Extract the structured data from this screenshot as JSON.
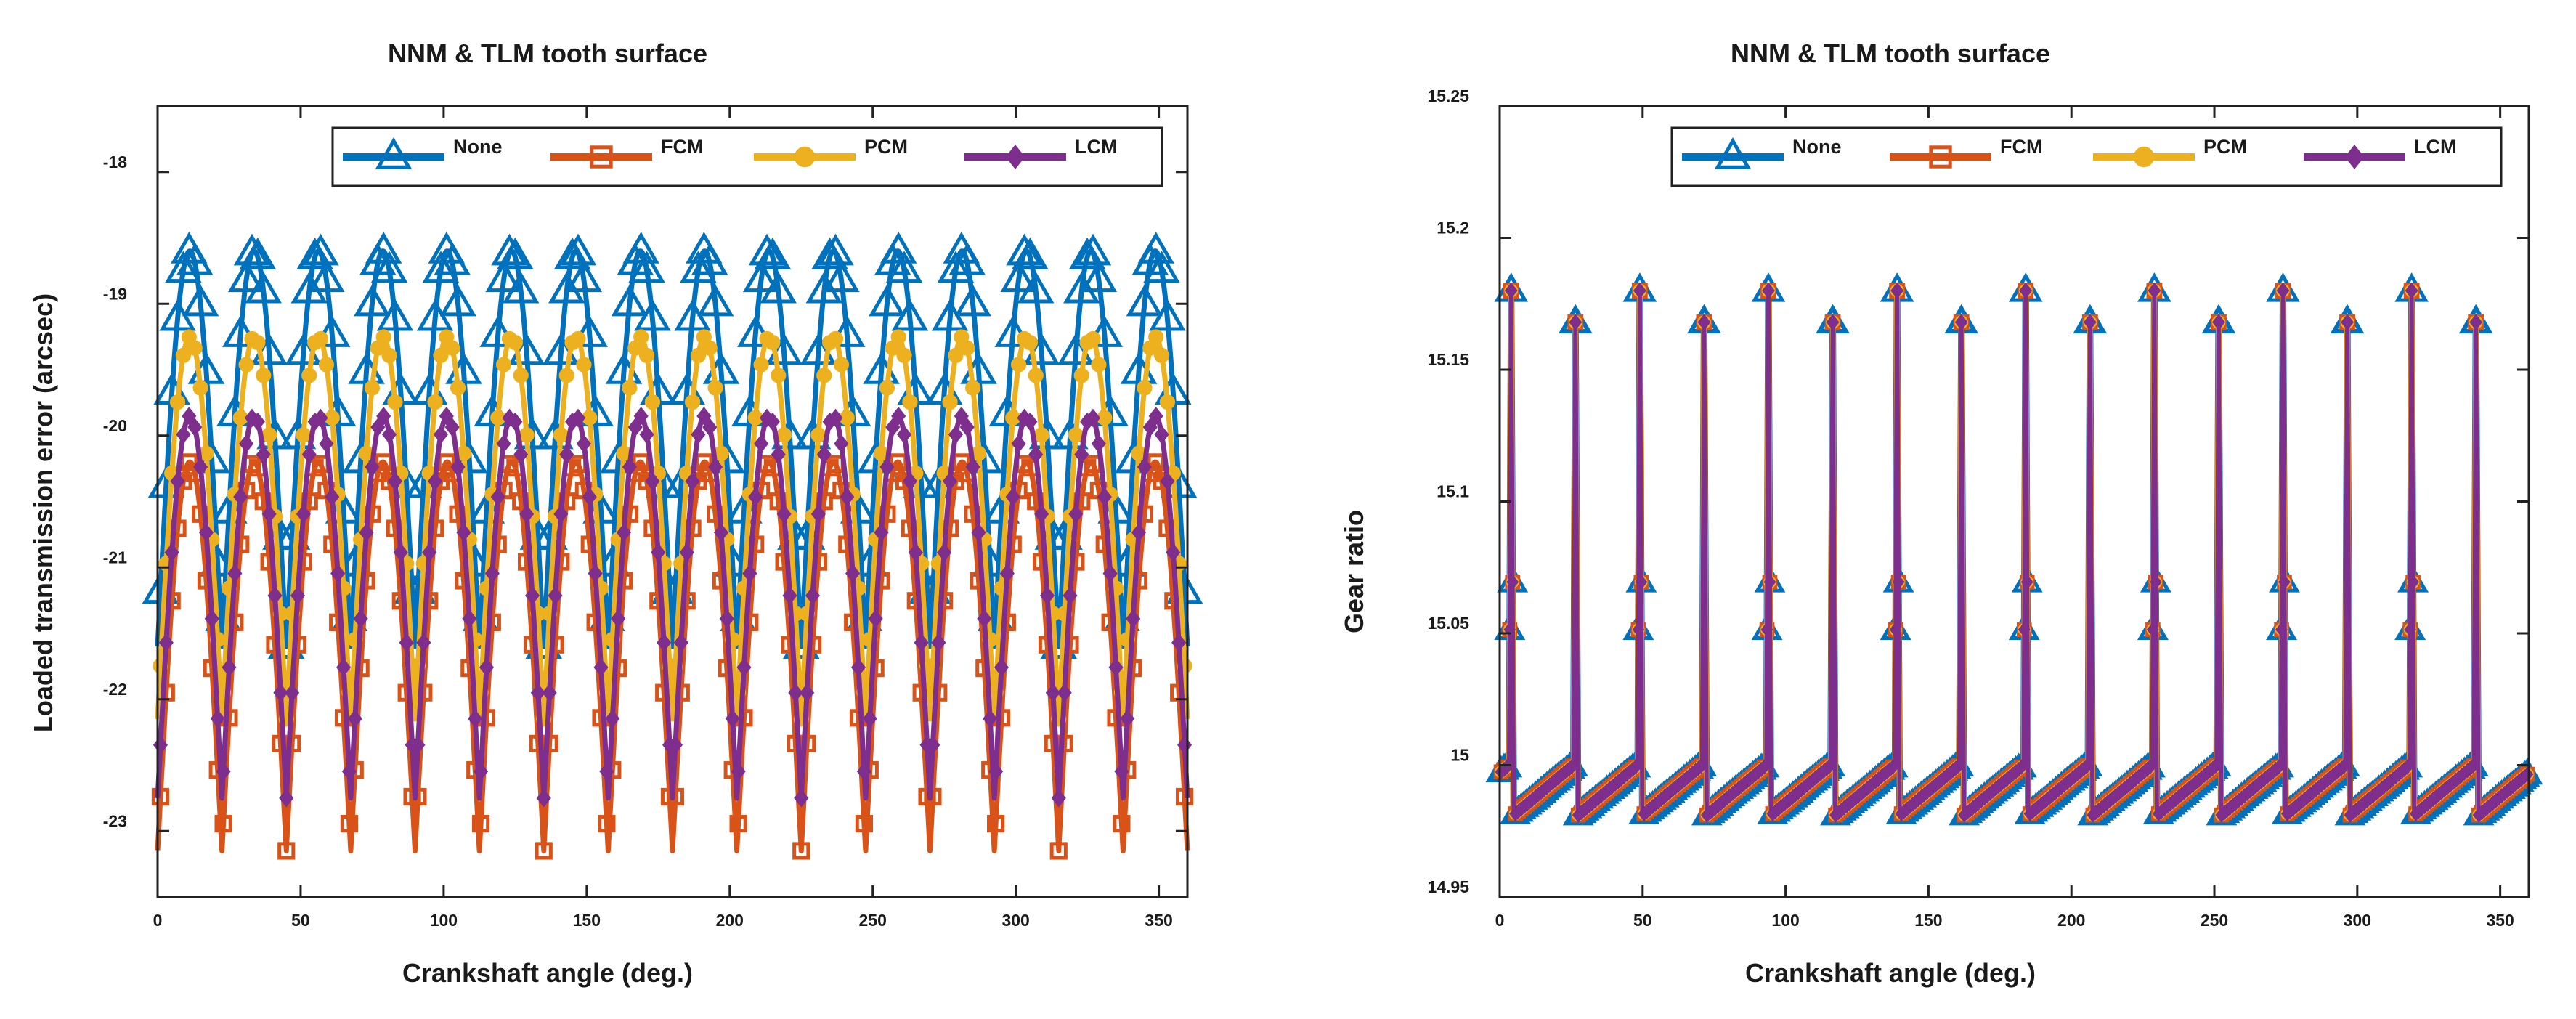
{
  "colors": {
    "None": "#0072BD",
    "FCM": "#D95319",
    "PCM": "#EDB120",
    "LCM": "#7E2F8E",
    "axis": "#222222"
  },
  "chart_data": [
    {
      "type": "line",
      "title": "NNM & TLM tooth surface",
      "xlabel": "Crankshaft angle (deg.)",
      "ylabel": "Loaded transmission error (arcsec)",
      "xlim": [
        0,
        360
      ],
      "ylim": [
        -23.5,
        -17.5
      ],
      "xticks": [
        0,
        50,
        100,
        150,
        200,
        250,
        300,
        350
      ],
      "xtick_labels": [
        "0",
        "50",
        "100",
        "150",
        "200",
        "250",
        "300",
        "350"
      ],
      "yticks": [
        -18,
        -19,
        -20,
        -21,
        -22,
        -23
      ],
      "ytick_labels": [
        "-18",
        "-19",
        "-20",
        "-21",
        "-22",
        "-23"
      ],
      "legend_position": "top",
      "period_deg": 22.5,
      "series": [
        {
          "name": "None",
          "marker": "triangle",
          "peak": -18.6,
          "trough": -21.6,
          "peak_phase_deg": 0
        },
        {
          "name": "FCM",
          "marker": "square",
          "peak": -20.2,
          "trough": -23.15,
          "peak_phase_deg": 0
        },
        {
          "name": "PCM",
          "marker": "circle",
          "peak": -19.25,
          "trough": -22.15,
          "peak_phase_deg": 0
        },
        {
          "name": "LCM",
          "marker": "diamond",
          "peak": -19.85,
          "trough": -22.75,
          "peak_phase_deg": 0
        }
      ]
    },
    {
      "type": "line",
      "title": "NNM & TLM tooth surface",
      "xlabel": "Crankshaft angle (deg.)",
      "ylabel": "Gear ratio",
      "xlim": [
        0,
        360
      ],
      "ylim": [
        14.95,
        15.25
      ],
      "xticks": [
        0,
        50,
        100,
        150,
        200,
        250,
        300,
        350
      ],
      "xtick_labels": [
        "0",
        "50",
        "100",
        "150",
        "200",
        "250",
        "300",
        "350"
      ],
      "yticks": [
        14.95,
        15,
        15.05,
        15.1,
        15.15,
        15.2,
        15.25
      ],
      "ytick_labels": [
        "14.95",
        "15",
        "15.05",
        "15.1",
        "15.15",
        "15.2",
        "15.25"
      ],
      "legend_position": "top",
      "period_deg": 22.5,
      "baseline_low": 14.981,
      "baseline_high": 15.0,
      "spike_peaks": [
        15.18,
        15.168
      ],
      "series": [
        {
          "name": "None",
          "marker": "triangle"
        },
        {
          "name": "FCM",
          "marker": "square"
        },
        {
          "name": "PCM",
          "marker": "circle"
        },
        {
          "name": "LCM",
          "marker": "diamond"
        }
      ]
    }
  ]
}
